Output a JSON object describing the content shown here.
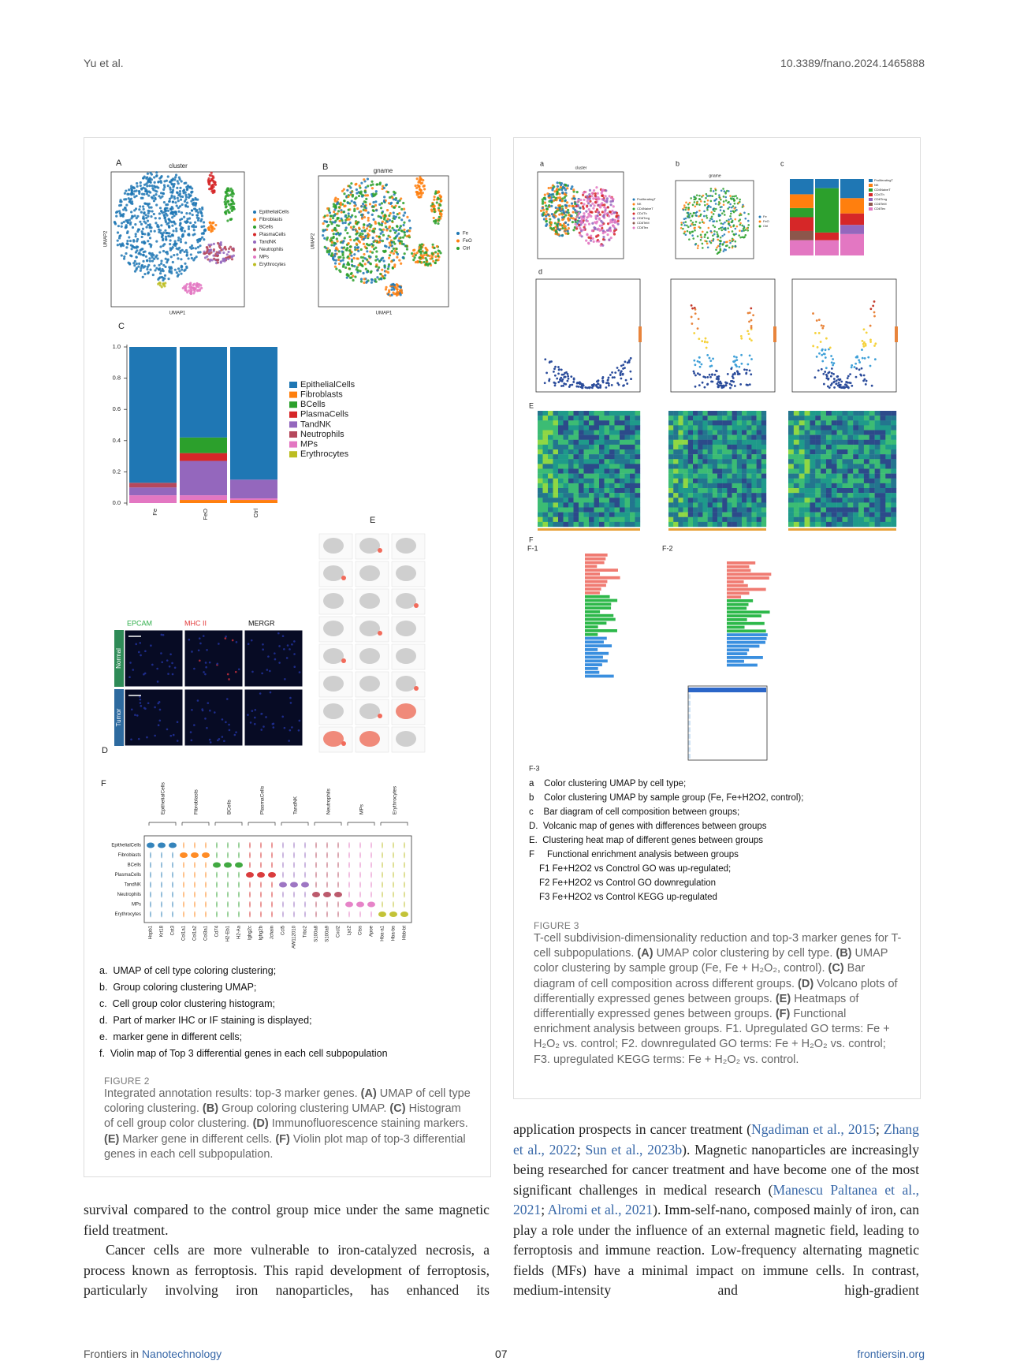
{
  "header": {
    "left": "Yu et al.",
    "right": "10.3389/fnano.2024.1465888"
  },
  "figure2": {
    "panel_labels": [
      "A",
      "B",
      "C",
      "D",
      "E",
      "F"
    ],
    "umap_a_title": "cluster",
    "umap_b_title": "gname",
    "umap_x_label": "UMAP1",
    "umap_y_label": "UMAP2",
    "cell_types": [
      "EpithelialCells",
      "Fibroblasts",
      "BCells",
      "PlasmaCells",
      "TandNK",
      "Neutrophils",
      "MPs",
      "Erythrocytes"
    ],
    "cell_type_colors": [
      "#1f77b4",
      "#ff7f0e",
      "#2ca02c",
      "#d62728",
      "#9467bd",
      "#b5485c",
      "#e377c2",
      "#bcbd22"
    ],
    "groups": [
      "Fe",
      "FeO",
      "Ctrl"
    ],
    "group_colors": [
      "#1f77b4",
      "#ff7f0e",
      "#2ca02c"
    ],
    "bar_yticks": [
      "1.0",
      "0.8",
      "0.6",
      "0.4",
      "0.2",
      "0.0"
    ],
    "if_channels": [
      "EPCAM",
      "MHC II",
      "MERGR"
    ],
    "if_rows": [
      "Normal",
      "Tumor"
    ],
    "violin_genes": [
      "Hspb1",
      "Krt18",
      "Cst3",
      "Col1a1",
      "Col1a2",
      "Col3a1",
      "Cd74",
      "H2-Eb1",
      "H2-Aa",
      "Ighg2c",
      "Ighg2b",
      "Jchain",
      "Ccl5",
      "AW112010",
      "Trbc2",
      "S100a8",
      "S100a9",
      "Cxcl2",
      "Lyz2",
      "Ctss",
      "Apoe",
      "Hba-a1",
      "Hba-bs",
      "Hbb-bt"
    ],
    "notes": [
      "a.  UMAP of cell type coloring clustering;",
      "b.  Group coloring clustering UMAP;",
      "c.  Cell group color clustering histogram;",
      "d.  Part of marker IHC or IF staining is displayed;",
      "e.  marker gene in different cells;",
      "f.  Violin map of Top 3 differential genes in each cell subpopulation"
    ],
    "caption_label": "FIGURE 2",
    "caption_parts": [
      "Integrated annotation results: top-3 marker genes. ",
      "(A)",
      " UMAP of cell type coloring clustering. ",
      "(B)",
      " Group coloring clustering UMAP. ",
      "(C)",
      " Histogram of cell group color clustering. ",
      "(D)",
      " Immunofluorescence staining markers. ",
      "(E)",
      " Marker gene in different cells. ",
      "(F)",
      " Violin plot map of top-3 differential genes in each cell subpopulation."
    ]
  },
  "figure3": {
    "panel_labels": [
      "a",
      "b",
      "c",
      "d",
      "E",
      "F",
      "F-1",
      "F-2",
      "F-3"
    ],
    "umap_a_title": "cluster",
    "umap_b_title": "gname",
    "t_cell_types": [
      "ProliferatingT",
      "NK",
      "CD4NaiveT",
      "CD4Th",
      "CD8Treg",
      "CD8TeM",
      "CD8Tex"
    ],
    "t_cell_colors": [
      "#1f77b4",
      "#ff7f0e",
      "#2ca02c",
      "#d62728",
      "#9467bd",
      "#8c564b",
      "#e377c2"
    ],
    "groups": [
      "Fe",
      "FeO",
      "Ctrl"
    ],
    "notes": [
      "a    Color clustering UMAP by cell type;",
      "b    Color clustering UMAP by sample group (Fe, Fe+H2O2, control);",
      "c    Bar diagram of cell composition between groups;",
      "D.  Volcanic map of genes with differences between groups",
      "E.  Clustering heat map of different genes between groups",
      "F     Functional enrichment analysis between groups",
      "F1 Fe+H2O2 vs Conctrol GO was up-regulated;",
      "F2 Fe+H2O2 vs Control GO downregulation",
      "F3 Fe+H2O2 vs Control KEGG up-regulated"
    ],
    "caption_label": "FIGURE 3",
    "caption_parts": [
      "T-cell subdivision-dimensionality reduction and top-3 marker genes for T-cell subpopulations. ",
      "(A)",
      " UMAP color clustering by cell type. ",
      "(B)",
      " UMAP color clustering by sample group (Fe, Fe + H₂O₂, control). ",
      "(C)",
      " Bar diagram of cell composition across different groups. ",
      "(D)",
      " Volcano plots of differentially expressed genes between groups. ",
      "(E)",
      " Heatmaps of differentially expressed genes between groups. ",
      "(F)",
      " Functional enrichment analysis between groups. F1. Upregulated GO terms: Fe + H₂O₂ vs. control; F2. downregulated GO terms: Fe + H₂O₂ vs. control; F3. upregulated KEGG terms: Fe + H₂O₂ vs. control."
    ]
  },
  "body": {
    "left_paragraphs": [
      "survival compared to the control group mice under the same magnetic field treatment.",
      "Cancer cells are more vulnerable to iron-catalyzed necrosis, a process known as ferroptosis. This rapid development of ferroptosis, particularly involving iron nanoparticles, has enhanced its"
    ],
    "right_parts": [
      "application prospects in cancer treatment (",
      "Ngadiman et al., 2015",
      "; ",
      "Zhang et al., 2022",
      "; ",
      "Sun et al., 2023b",
      "). Magnetic nanoparticles are increasingly being researched for cancer treatment and have become one of the most significant challenges in medical research (",
      "Manescu Paltanea et al., 2021",
      "; ",
      "Alromi et al., 2021",
      "). Imm-self-nano, composed mainly of iron, can play a role under the influence of an external magnetic field, leading to ferroptosis and immune reaction. Low-frequency alternating magnetic fields (MFs) have a minimal impact on immune cells. In contrast, medium-intensity and high-gradient"
    ]
  },
  "footer": {
    "left_prefix": "Frontiers in ",
    "left_journal": "Nanotechnology",
    "page": "07",
    "right": "frontiersin.org"
  }
}
